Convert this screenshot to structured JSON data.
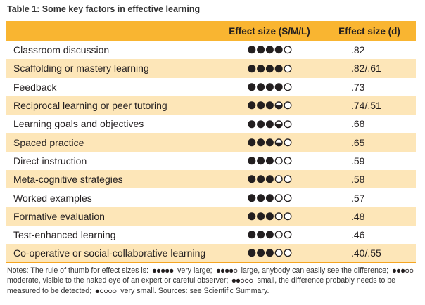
{
  "title": "Table 1: Some key factors in effective learning",
  "columns": [
    "",
    "Effect size (S/M/L)",
    "Effect size (d)"
  ],
  "rows": [
    {
      "factor": "Classroom discussion",
      "dots": "4",
      "d": ".82"
    },
    {
      "factor": "Scaffolding or mastery learning",
      "dots": "4",
      "d": ".82/.61"
    },
    {
      "factor": "Feedback",
      "dots": "4",
      "d": ".73"
    },
    {
      "factor": "Reciprocal learning or peer tutoring",
      "dots": "3.5",
      "d": ".74/.51"
    },
    {
      "factor": "Learning goals and objectives",
      "dots": "3.5",
      "d": ".68"
    },
    {
      "factor": "Spaced practice",
      "dots": "3.5",
      "d": ".65"
    },
    {
      "factor": "Direct instruction",
      "dots": "3",
      "d": ".59"
    },
    {
      "factor": "Meta-cognitive strategies",
      "dots": "3",
      "d": ".58"
    },
    {
      "factor": "Worked examples",
      "dots": "3",
      "d": ".57"
    },
    {
      "factor": "Formative evaluation",
      "dots": "3",
      "d": ".48"
    },
    {
      "factor": "Test-enhanced learning",
      "dots": "3",
      "d": ".46"
    },
    {
      "factor": "Co-operative or social-collaborative learning",
      "dots": "3",
      "d": ".40/.55"
    }
  ],
  "notes": {
    "intro": "Notes: The rule of thumb for effect sizes is:",
    "very_large": "very large;",
    "large": "large, anybody can easily see the difference;",
    "moderate": "moderate, visible to the naked eye of an expert or careful observer;",
    "small": "small, the difference probably needs to be measured to be detected;",
    "very_small": "very small. Sources: see Scientific Summary."
  },
  "colors": {
    "header_fill": "#f9b531",
    "row_shade": "#fde6b8",
    "dot": "#231f20"
  }
}
